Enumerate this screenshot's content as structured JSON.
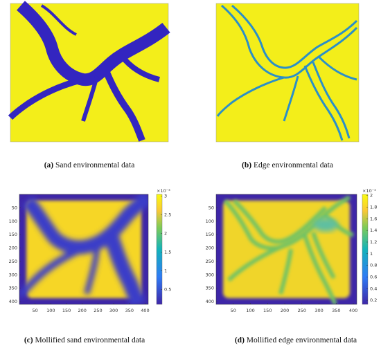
{
  "panels": [
    {
      "label": "(a)",
      "caption": "Sand environmental data"
    },
    {
      "label": "(b)",
      "caption": "Edge environmental data"
    },
    {
      "label": "(c)",
      "caption": "Mollified sand environmental data",
      "xlim": [
        0,
        410
      ],
      "ylim": [
        0,
        410
      ],
      "xticks": [
        50,
        100,
        150,
        200,
        250,
        300,
        350,
        400
      ],
      "yticks": [
        50,
        100,
        150,
        200,
        250,
        300,
        350,
        400
      ],
      "colorbar": {
        "exponent_label": "×10⁻³",
        "lim": [
          0.1,
          3.05
        ],
        "ticks": [
          0.5,
          1,
          1.5,
          2,
          2.5,
          3
        ]
      }
    },
    {
      "label": "(d)",
      "caption": "Mollified edge environmental data",
      "xlim": [
        0,
        410
      ],
      "ylim": [
        0,
        410
      ],
      "xticks": [
        50,
        100,
        150,
        200,
        250,
        300,
        350,
        400
      ],
      "yticks": [
        50,
        100,
        150,
        200,
        250,
        300,
        350,
        400
      ],
      "colorbar": {
        "exponent_label": "×10⁻³",
        "lim": [
          0.13,
          2.02
        ],
        "ticks": [
          0.2,
          0.4,
          0.6,
          0.8,
          1,
          1.2,
          1.4,
          1.6,
          1.8,
          2
        ]
      }
    }
  ]
}
